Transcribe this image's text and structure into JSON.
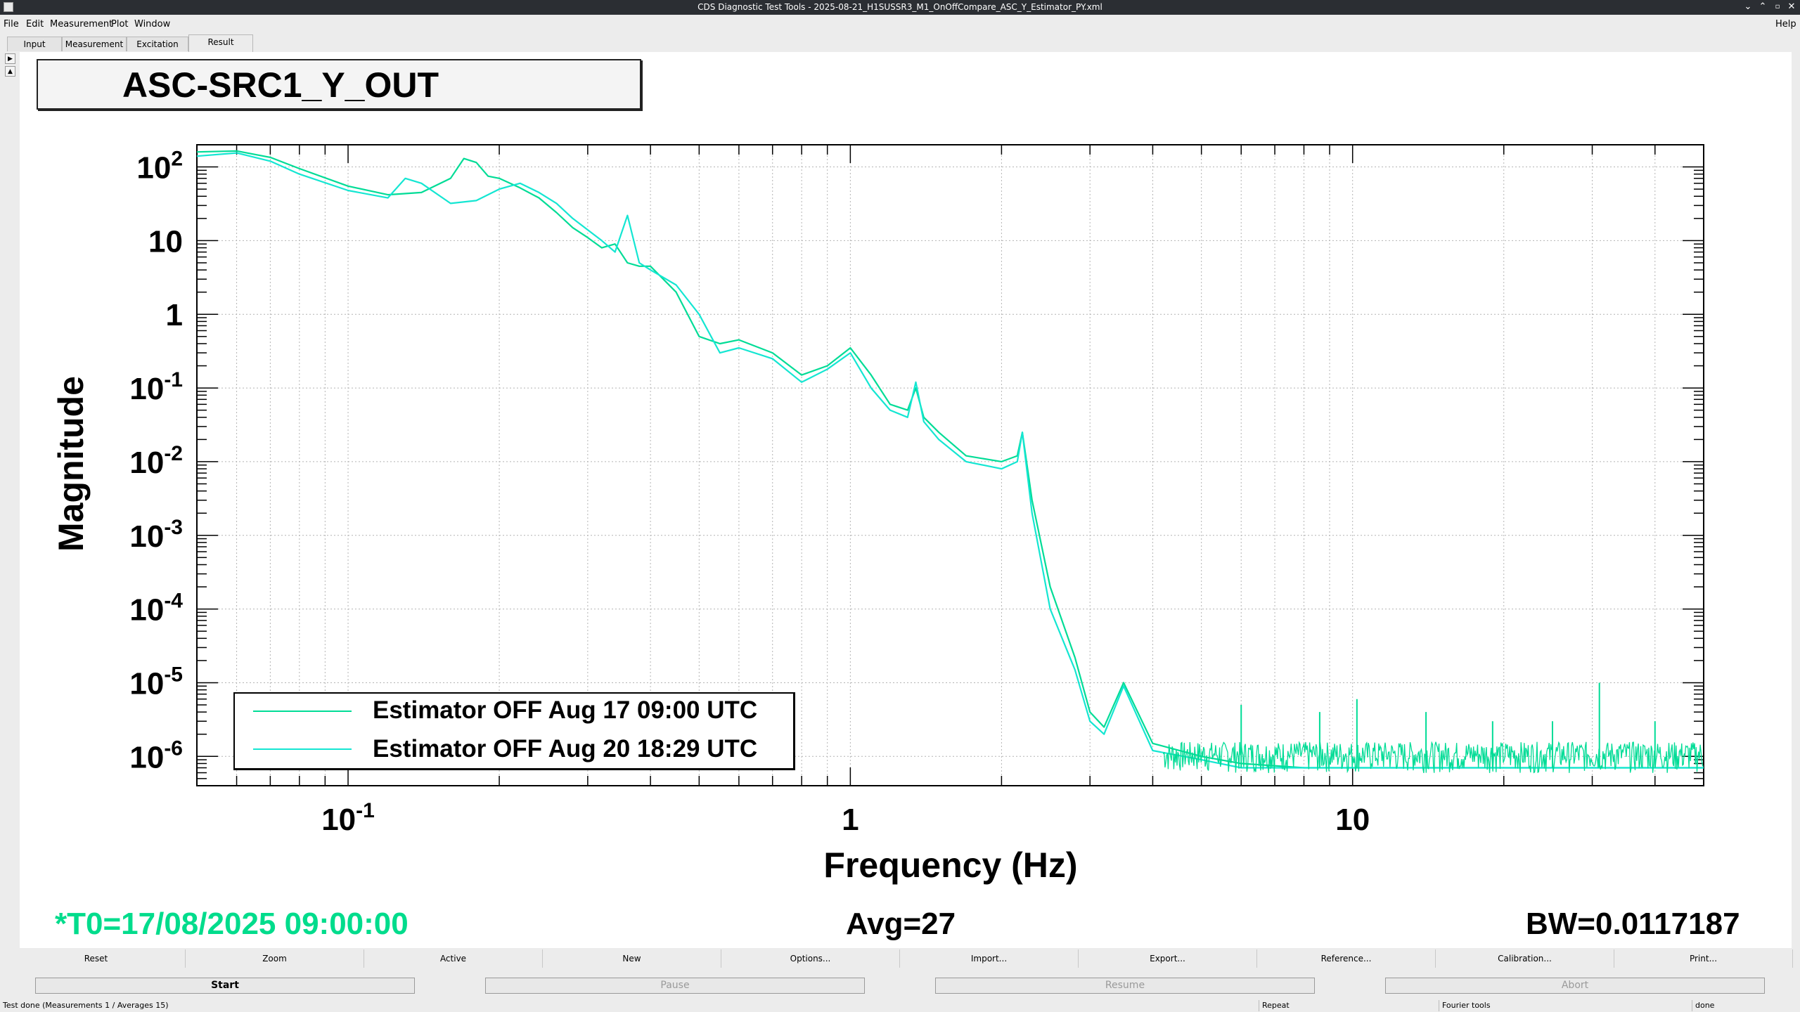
{
  "window": {
    "title": "CDS Diagnostic Test Tools - 2025-08-21_H1SUSSR3_M1_OnOffCompare_ASC_Y_Estimator_PY.xml"
  },
  "menu": [
    "File",
    "Edit",
    "Measurement",
    "Plot",
    "Window"
  ],
  "menu_right": "Help",
  "tabs": [
    "Input",
    "Measurement",
    "Excitation",
    "Result"
  ],
  "active_tab": "Result",
  "plot": {
    "title": "ASC-SRC1_Y_OUT",
    "xlabel": "Frequency (Hz)",
    "ylabel": "Magnitude",
    "t0": "*T0=17/08/2025 09:00:00",
    "avg": "Avg=27",
    "bw": "BW=0.0117187",
    "colors": {
      "series1": "#00dc96",
      "series2": "#14e6d2",
      "t0_text": "#00dc8c"
    }
  },
  "chart_data": {
    "type": "line",
    "title": "ASC-SRC1_Y_OUT",
    "xlabel": "Frequency (Hz)",
    "ylabel": "Magnitude",
    "xscale": "log",
    "yscale": "log",
    "xlim": [
      0.05,
      50
    ],
    "ylim": [
      4e-07,
      200
    ],
    "x_tick_labels": [
      "10^-1",
      "1",
      "10"
    ],
    "y_tick_labels": [
      "10^2",
      "10",
      "1",
      "10^-1",
      "10^-2",
      "10^-3",
      "10^-4",
      "10^-5",
      "10^-6"
    ],
    "grid": true,
    "legend_position": "bottom-left",
    "series": [
      {
        "name": "Estimator OFF Aug 17 09:00 UTC",
        "color": "#00dc96",
        "x": [
          0.05,
          0.06,
          0.07,
          0.08,
          0.1,
          0.12,
          0.14,
          0.16,
          0.17,
          0.18,
          0.19,
          0.2,
          0.22,
          0.24,
          0.26,
          0.28,
          0.3,
          0.32,
          0.34,
          0.36,
          0.38,
          0.4,
          0.45,
          0.5,
          0.55,
          0.6,
          0.7,
          0.8,
          0.9,
          1.0,
          1.1,
          1.2,
          1.3,
          1.35,
          1.4,
          1.5,
          1.7,
          2.0,
          2.15,
          2.2,
          2.3,
          2.5,
          2.8,
          3.0,
          3.2,
          3.5,
          4.0,
          5.0,
          6.0,
          8.0,
          10.0,
          15.0,
          20.0,
          30.0,
          40.0,
          50.0
        ],
        "y": [
          160,
          165,
          135,
          95,
          55,
          42,
          45,
          70,
          130,
          115,
          75,
          70,
          52,
          38,
          24,
          15,
          11,
          8,
          9,
          5,
          4.5,
          4.5,
          2,
          0.5,
          0.4,
          0.45,
          0.3,
          0.15,
          0.2,
          0.35,
          0.15,
          0.06,
          0.05,
          0.1,
          0.04,
          0.025,
          0.012,
          0.01,
          0.012,
          0.025,
          0.003,
          0.0002,
          2.2e-05,
          4e-06,
          2.5e-06,
          1e-05,
          1.5e-06,
          1e-06,
          8e-07,
          7e-07,
          7e-07,
          7e-07,
          7e-07,
          7e-07,
          7e-07,
          7e-07
        ]
      },
      {
        "name": "Estimator OFF Aug 20 18:29 UTC",
        "color": "#14e6d2",
        "x": [
          0.05,
          0.06,
          0.07,
          0.08,
          0.1,
          0.12,
          0.13,
          0.14,
          0.16,
          0.18,
          0.2,
          0.22,
          0.24,
          0.26,
          0.28,
          0.3,
          0.32,
          0.34,
          0.36,
          0.38,
          0.4,
          0.45,
          0.5,
          0.55,
          0.6,
          0.7,
          0.8,
          0.9,
          1.0,
          1.1,
          1.2,
          1.3,
          1.35,
          1.4,
          1.5,
          1.7,
          2.0,
          2.15,
          2.2,
          2.3,
          2.5,
          2.8,
          3.0,
          3.2,
          3.5,
          4.0,
          5.0,
          6.0,
          8.0,
          10.0,
          15.0,
          20.0,
          30.0,
          40.0,
          50.0
        ],
        "y": [
          140,
          155,
          120,
          80,
          48,
          38,
          70,
          60,
          32,
          35,
          50,
          60,
          45,
          32,
          20,
          14,
          10,
          7,
          22,
          5,
          4,
          2.5,
          1,
          0.3,
          0.35,
          0.25,
          0.12,
          0.18,
          0.3,
          0.1,
          0.05,
          0.04,
          0.12,
          0.035,
          0.02,
          0.01,
          0.008,
          0.01,
          0.025,
          0.002,
          0.0001,
          1.5e-05,
          3e-06,
          2e-06,
          9e-06,
          1.2e-06,
          9e-07,
          7e-07,
          7e-07,
          7e-07,
          7e-07,
          7e-07,
          7e-07,
          7e-07,
          7e-07
        ]
      }
    ]
  },
  "toolbar": [
    "Reset",
    "Zoom",
    "Active",
    "New",
    "Options...",
    "Import...",
    "Export...",
    "Reference...",
    "Calibration...",
    "Print..."
  ],
  "controls": {
    "start": "Start",
    "pause": "Pause",
    "resume": "Resume",
    "abort": "Abort"
  },
  "status": {
    "left": "Test done (Measurements 1 / Averages 15)",
    "repeat": "Repeat",
    "fourier": "Fourier tools",
    "done": "done"
  },
  "icons": {
    "window_minimize": "chevron-down-icon",
    "window_maximize": "chevron-up-icon",
    "window_restore": "restore-icon",
    "window_close": "close-icon",
    "scroll_right": "arrow-right-icon",
    "scroll_up": "arrow-up-icon"
  }
}
